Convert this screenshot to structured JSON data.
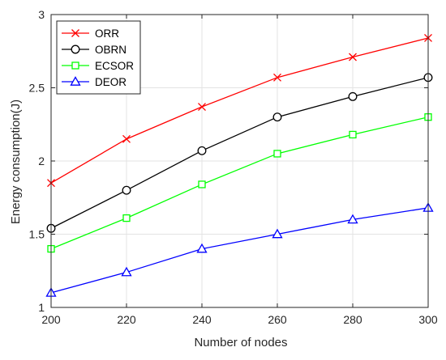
{
  "chart_data": {
    "type": "line",
    "xlabel": "Number of nodes",
    "ylabel": "Energy consumption(J)",
    "x": [
      200,
      220,
      240,
      260,
      280,
      300
    ],
    "xlim": [
      200,
      300
    ],
    "ylim": [
      1,
      3
    ],
    "xticks": [
      200,
      220,
      240,
      260,
      280,
      300
    ],
    "yticks": [
      1,
      1.5,
      2,
      2.5,
      3
    ],
    "xtick_labels": [
      "200",
      "220",
      "240",
      "260",
      "280",
      "300"
    ],
    "ytick_labels": [
      "1",
      "1.5",
      "2",
      "2.5",
      "3"
    ],
    "grid": true,
    "legend_position": "top-left",
    "series": [
      {
        "name": "ORR",
        "color": "#ff0000",
        "marker": "x-mark",
        "values": [
          1.85,
          2.15,
          2.37,
          2.57,
          2.71,
          2.84
        ]
      },
      {
        "name": "OBRN",
        "color": "#000000",
        "marker": "circle",
        "values": [
          1.54,
          1.8,
          2.07,
          2.3,
          2.44,
          2.57
        ]
      },
      {
        "name": "ECSOR",
        "color": "#00ff00",
        "marker": "square",
        "values": [
          1.4,
          1.61,
          1.84,
          2.05,
          2.18,
          2.3
        ]
      },
      {
        "name": "DEOR",
        "color": "#0000ff",
        "marker": "triangle",
        "values": [
          1.1,
          1.24,
          1.4,
          1.5,
          1.6,
          1.68
        ]
      }
    ]
  }
}
